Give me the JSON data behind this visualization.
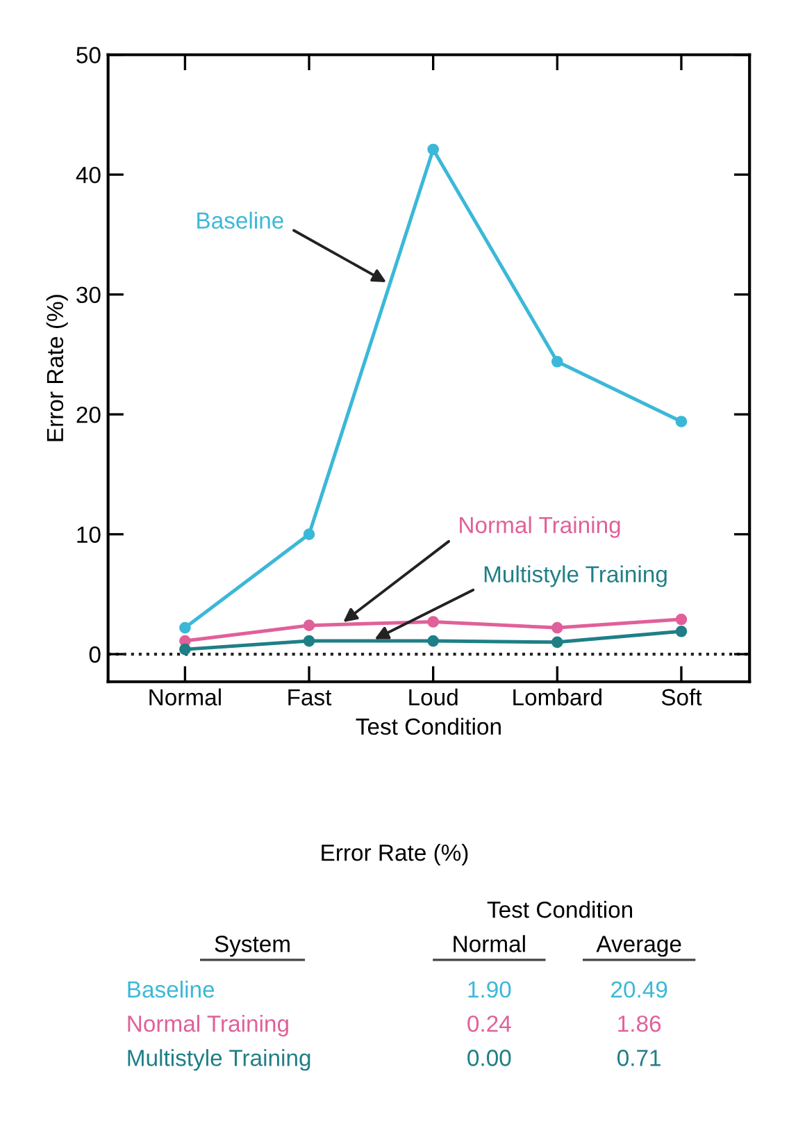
{
  "chart_data": {
    "type": "line",
    "xlabel": "Test Condition",
    "ylabel": "Error Rate (%)",
    "categories": [
      "Normal",
      "Fast",
      "Loud",
      "Lombard",
      "Soft"
    ],
    "series": [
      {
        "name": "Baseline",
        "color": "#3bb8d8",
        "values": [
          2.2,
          10.0,
          42.1,
          24.4,
          19.4
        ]
      },
      {
        "name": "Normal Training",
        "color": "#e0609a",
        "values": [
          1.1,
          2.4,
          2.7,
          2.2,
          2.9
        ]
      },
      {
        "name": "Multistyle Training",
        "color": "#1f7f86",
        "values": [
          0.4,
          1.1,
          1.1,
          1.0,
          1.9
        ]
      }
    ],
    "ylim": [
      -2.3,
      50
    ],
    "yticks": [
      0,
      10,
      20,
      30,
      40,
      50
    ],
    "marker": "circle",
    "line_style": "solid",
    "grid": false,
    "legend": false,
    "ref_lines": [
      {
        "axis": "y",
        "value": 0,
        "color": "#222222",
        "line_style": "dotted"
      }
    ],
    "annotations": [
      "Error Rate (%)",
      "Test Condition",
      "System",
      "Normal",
      "Average",
      "Baseline",
      "1.90",
      "20.49",
      "Normal Training",
      "0.24",
      "1.86",
      "Multistyle Training",
      "0.00",
      "0.71"
    ]
  }
}
